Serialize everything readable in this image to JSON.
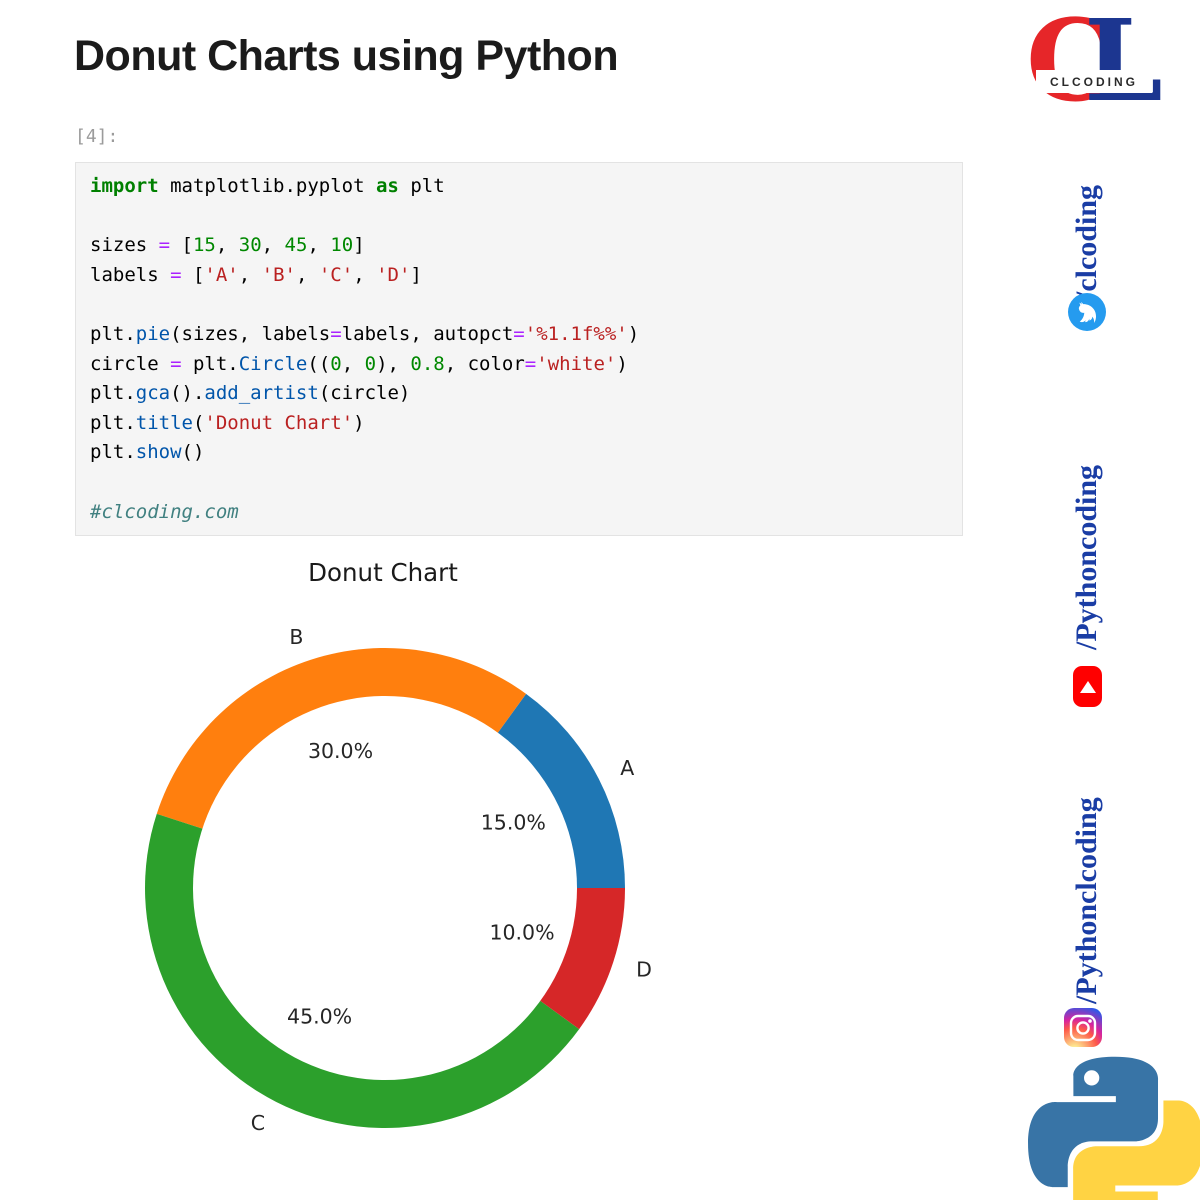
{
  "page": {
    "title_heading": "Donut Charts using Python"
  },
  "notebook": {
    "cell_prompt": "[4]:",
    "code": {
      "lines": [
        [
          [
            "import",
            "kw"
          ],
          [
            " matplotlib.pyplot ",
            "pl"
          ],
          [
            "as",
            "kw"
          ],
          [
            " plt",
            "pl"
          ]
        ],
        [],
        [
          [
            "sizes ",
            "pl"
          ],
          [
            "=",
            "op"
          ],
          [
            " [",
            "pl"
          ],
          [
            "15",
            "num"
          ],
          [
            ", ",
            "pl"
          ],
          [
            "30",
            "num"
          ],
          [
            ", ",
            "pl"
          ],
          [
            "45",
            "num"
          ],
          [
            ", ",
            "pl"
          ],
          [
            "10",
            "num"
          ],
          [
            "]",
            "pl"
          ]
        ],
        [
          [
            "labels ",
            "pl"
          ],
          [
            "=",
            "op"
          ],
          [
            " [",
            "pl"
          ],
          [
            "'A'",
            "str"
          ],
          [
            ", ",
            "pl"
          ],
          [
            "'B'",
            "str"
          ],
          [
            ", ",
            "pl"
          ],
          [
            "'C'",
            "str"
          ],
          [
            ", ",
            "pl"
          ],
          [
            "'D'",
            "str"
          ],
          [
            "]",
            "pl"
          ]
        ],
        [],
        [
          [
            "plt.",
            "pl"
          ],
          [
            "pie",
            "prop"
          ],
          [
            "(sizes, labels",
            "pl"
          ],
          [
            "=",
            "op"
          ],
          [
            "labels, autopct",
            "pl"
          ],
          [
            "=",
            "op"
          ],
          [
            "'%1.1f%%'",
            "str"
          ],
          [
            ")",
            "pl"
          ]
        ],
        [
          [
            "circle ",
            "pl"
          ],
          [
            "=",
            "op"
          ],
          [
            " plt.",
            "pl"
          ],
          [
            "Circle",
            "prop"
          ],
          [
            "((",
            "pl"
          ],
          [
            "0",
            "num"
          ],
          [
            ", ",
            "pl"
          ],
          [
            "0",
            "num"
          ],
          [
            "), ",
            "pl"
          ],
          [
            "0.8",
            "num"
          ],
          [
            ", color",
            "pl"
          ],
          [
            "=",
            "op"
          ],
          [
            "'white'",
            "str"
          ],
          [
            ")",
            "pl"
          ]
        ],
        [
          [
            "plt.",
            "pl"
          ],
          [
            "gca",
            "prop"
          ],
          [
            "().",
            "pl"
          ],
          [
            "add_artist",
            "prop"
          ],
          [
            "(circle)",
            "pl"
          ]
        ],
        [
          [
            "plt.",
            "pl"
          ],
          [
            "title",
            "prop"
          ],
          [
            "(",
            "pl"
          ],
          [
            "'Donut Chart'",
            "str"
          ],
          [
            ")",
            "pl"
          ]
        ],
        [
          [
            "plt.",
            "pl"
          ],
          [
            "show",
            "prop"
          ],
          [
            "()",
            "pl"
          ]
        ],
        [],
        [
          [
            "#clcoding.com",
            "com"
          ]
        ]
      ]
    }
  },
  "chart_data": {
    "type": "pie",
    "title": "Donut Chart",
    "categories": [
      "A",
      "B",
      "C",
      "D"
    ],
    "values": [
      15,
      30,
      45,
      10
    ],
    "autopct_labels": [
      "15.0%",
      "30.0%",
      "45.0%",
      "10.0%"
    ],
    "colors": [
      "#1f77b4",
      "#ff7f0e",
      "#2ca02c",
      "#d62728"
    ],
    "start_angle": 0,
    "counterclock": true,
    "donut_hole_radius": 0.8,
    "label_distance": 1.1,
    "pct_distance": 0.6,
    "text_color": "#262626",
    "legend": "none",
    "grid": false
  },
  "sidebar": {
    "logo": {
      "letter_c": "C",
      "letter_l": "L",
      "band_text": "CLCODING",
      "c_color": "#e62629",
      "l_color": "#1c3690"
    },
    "socials": [
      {
        "platform": "twitter",
        "handle": "/clcoding",
        "icon_color": "#259bef"
      },
      {
        "platform": "youtube",
        "handle": "/Pythoncoding",
        "icon_color": "#ff0000"
      },
      {
        "platform": "instagram",
        "handle": "/Pythonclcoding",
        "icon_color": "#d6249f"
      }
    ],
    "handle_text_color": "#1a3da5",
    "python_logo_colors": {
      "blue": "#3874a6",
      "yellow": "#ffd343"
    }
  }
}
